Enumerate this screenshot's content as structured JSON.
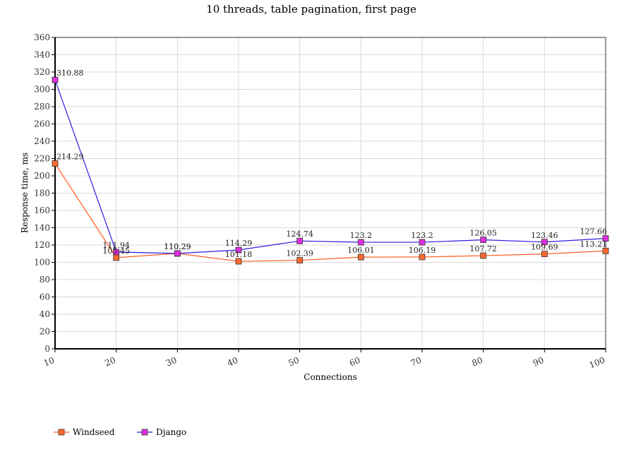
{
  "chart_data": {
    "type": "line",
    "title": "10 threads, table pagination, first page",
    "xlabel": "Connections",
    "ylabel": "Response time, ms",
    "x": [
      10,
      20,
      30,
      40,
      50,
      60,
      70,
      80,
      90,
      100
    ],
    "ylim": [
      0,
      360
    ],
    "ytick_step": 20,
    "grid": true,
    "legend_position": "bottom-left",
    "series": [
      {
        "name": "Windseed",
        "color": "#ff5a1f",
        "marker_fill": "#ff6a30",
        "values": [
          214.29,
          105.45,
          110.29,
          101.18,
          102.39,
          106.01,
          106.19,
          107.72,
          109.69,
          113.21
        ]
      },
      {
        "name": "Django",
        "color": "#2a1ee0",
        "marker_fill": "#e030e0",
        "values": [
          310.88,
          111.94,
          110.29,
          114.29,
          124.74,
          123.2,
          123.2,
          126.05,
          123.46,
          127.66
        ]
      }
    ]
  }
}
